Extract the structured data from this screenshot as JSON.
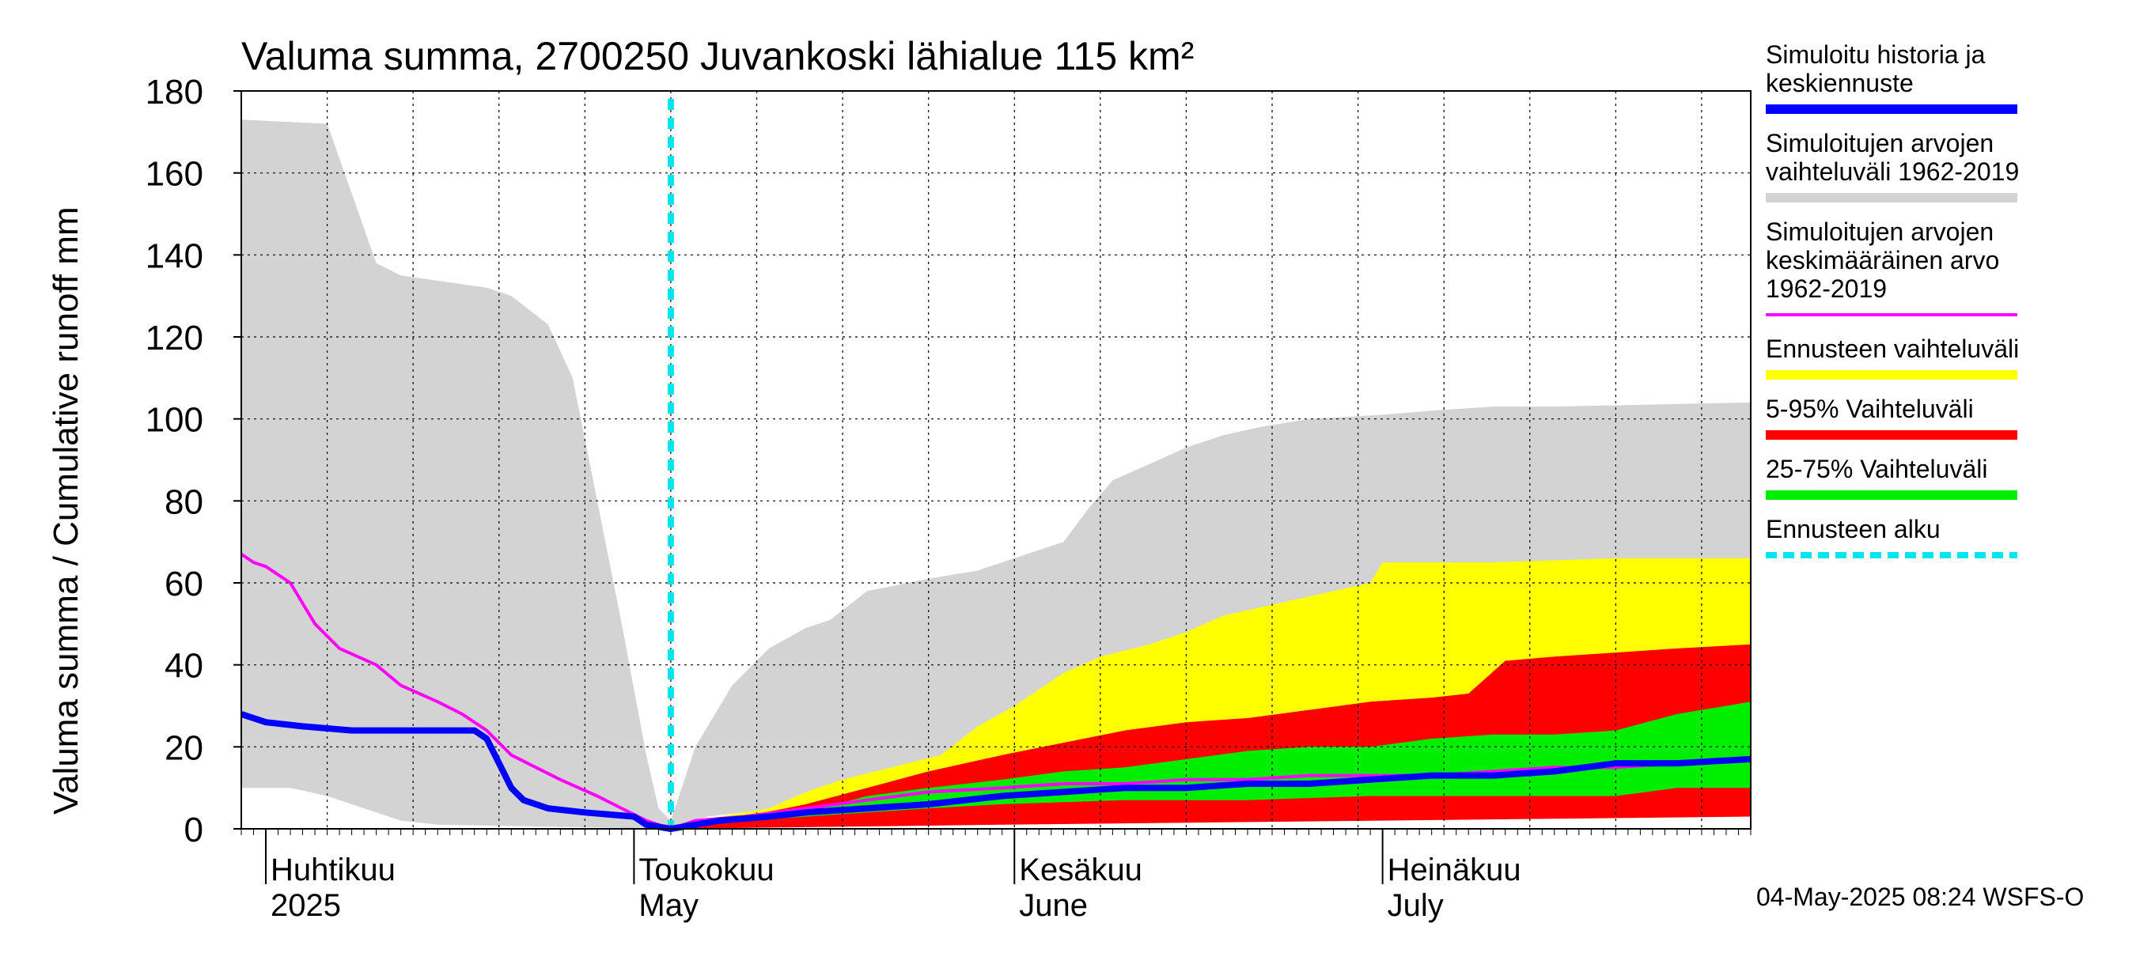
{
  "chart_data": {
    "type": "area",
    "title": "Valuma summa, 2700250 Juvankoski lähialue 115 km²",
    "ylabel": "Valuma summa / Cumulative runoff    mm",
    "ylim": [
      0,
      180
    ],
    "yticks": [
      0,
      20,
      40,
      60,
      80,
      100,
      120,
      140,
      160,
      180
    ],
    "xlim": [
      "2025-03-30",
      "2025-07-31"
    ],
    "grid": true,
    "legend_position": "right",
    "month_labels": [
      {
        "fi": "Huhtikuu",
        "en": "2025",
        "date": "2025-04-01"
      },
      {
        "fi": "Toukokuu",
        "en": "May",
        "date": "2025-05-01"
      },
      {
        "fi": "Kesäkuu",
        "en": "June",
        "date": "2025-06-01"
      },
      {
        "fi": "Heinäkuu",
        "en": "July",
        "date": "2025-07-01"
      }
    ],
    "forecast_start": "2025-05-04",
    "bands": [
      {
        "name": "Simuloitujen arvojen vaihteluväli 1962-2019",
        "color": "#d3d3d3",
        "upper": [
          [
            "2025-03-30",
            173
          ],
          [
            "2025-04-06",
            172
          ],
          [
            "2025-04-10",
            138
          ],
          [
            "2025-04-12",
            135
          ],
          [
            "2025-04-19",
            132
          ],
          [
            "2025-04-21",
            130
          ],
          [
            "2025-04-24",
            123
          ],
          [
            "2025-04-26",
            110
          ],
          [
            "2025-04-28",
            80
          ],
          [
            "2025-04-30",
            50
          ],
          [
            "2025-05-02",
            18
          ],
          [
            "2025-05-03",
            5
          ],
          [
            "2025-05-04",
            2
          ],
          [
            "2025-05-06",
            20
          ],
          [
            "2025-05-09",
            35
          ],
          [
            "2025-05-12",
            44
          ],
          [
            "2025-05-15",
            49
          ],
          [
            "2025-05-17",
            51
          ],
          [
            "2025-05-20",
            58
          ],
          [
            "2025-05-25",
            61
          ],
          [
            "2025-05-29",
            63
          ],
          [
            "2025-06-01",
            66
          ],
          [
            "2025-06-03",
            68
          ],
          [
            "2025-06-05",
            70
          ],
          [
            "2025-06-07",
            78
          ],
          [
            "2025-06-09",
            85
          ],
          [
            "2025-06-12",
            89
          ],
          [
            "2025-06-15",
            93
          ],
          [
            "2025-06-18",
            96
          ],
          [
            "2025-06-21",
            98
          ],
          [
            "2025-06-25",
            100
          ],
          [
            "2025-07-01",
            101
          ],
          [
            "2025-07-05",
            102
          ],
          [
            "2025-07-10",
            103
          ],
          [
            "2025-07-15",
            103
          ],
          [
            "2025-07-31",
            104
          ]
        ],
        "lower": [
          [
            "2025-03-30",
            10
          ],
          [
            "2025-04-03",
            10
          ],
          [
            "2025-04-06",
            8
          ],
          [
            "2025-04-09",
            5
          ],
          [
            "2025-04-12",
            2
          ],
          [
            "2025-04-15",
            1
          ],
          [
            "2025-05-04",
            0
          ],
          [
            "2025-05-07",
            3
          ],
          [
            "2025-05-10",
            4
          ],
          [
            "2025-05-31",
            4
          ],
          [
            "2025-07-31",
            4
          ]
        ]
      },
      {
        "name": "Ennusteen vaihteluväli",
        "color": "#ffff00",
        "upper": [
          [
            "2025-05-04",
            0
          ],
          [
            "2025-05-08",
            3
          ],
          [
            "2025-05-12",
            5
          ],
          [
            "2025-05-15",
            9
          ],
          [
            "2025-05-18",
            12
          ],
          [
            "2025-05-22",
            15
          ],
          [
            "2025-05-26",
            18
          ],
          [
            "2025-05-29",
            25
          ],
          [
            "2025-06-01",
            30
          ],
          [
            "2025-06-03",
            34
          ],
          [
            "2025-06-05",
            38
          ],
          [
            "2025-06-08",
            42
          ],
          [
            "2025-06-12",
            45
          ],
          [
            "2025-06-15",
            48
          ],
          [
            "2025-06-18",
            52
          ],
          [
            "2025-06-21",
            54
          ],
          [
            "2025-06-24",
            56
          ],
          [
            "2025-06-27",
            58
          ],
          [
            "2025-06-30",
            60
          ],
          [
            "2025-07-01",
            65
          ],
          [
            "2025-07-10",
            65
          ],
          [
            "2025-07-20",
            66
          ],
          [
            "2025-07-31",
            66
          ]
        ],
        "lower": [
          [
            "2025-05-04",
            0
          ],
          [
            "2025-05-31",
            2
          ],
          [
            "2025-07-31",
            3
          ]
        ]
      },
      {
        "name": "5-95% Vaihteluväli",
        "color": "#ff0000",
        "upper": [
          [
            "2025-05-04",
            0
          ],
          [
            "2025-05-10",
            3
          ],
          [
            "2025-05-15",
            6
          ],
          [
            "2025-05-20",
            10
          ],
          [
            "2025-05-25",
            14
          ],
          [
            "2025-05-31",
            18
          ],
          [
            "2025-06-05",
            21
          ],
          [
            "2025-06-10",
            24
          ],
          [
            "2025-06-15",
            26
          ],
          [
            "2025-06-20",
            27
          ],
          [
            "2025-06-25",
            29
          ],
          [
            "2025-06-30",
            31
          ],
          [
            "2025-07-05",
            32
          ],
          [
            "2025-07-08",
            33
          ],
          [
            "2025-07-11",
            41
          ],
          [
            "2025-07-15",
            42
          ],
          [
            "2025-07-20",
            43
          ],
          [
            "2025-07-25",
            44
          ],
          [
            "2025-07-31",
            45
          ]
        ],
        "lower": [
          [
            "2025-05-04",
            0
          ],
          [
            "2025-05-31",
            1
          ],
          [
            "2025-07-31",
            3
          ]
        ]
      },
      {
        "name": "25-75% Vaihteluväli",
        "color": "#00ee00",
        "upper": [
          [
            "2025-05-04",
            0
          ],
          [
            "2025-05-10",
            2
          ],
          [
            "2025-05-15",
            4
          ],
          [
            "2025-05-20",
            8
          ],
          [
            "2025-05-25",
            10
          ],
          [
            "2025-05-31",
            12
          ],
          [
            "2025-06-05",
            14
          ],
          [
            "2025-06-10",
            15
          ],
          [
            "2025-06-15",
            17
          ],
          [
            "2025-06-20",
            19
          ],
          [
            "2025-06-25",
            20
          ],
          [
            "2025-06-30",
            20
          ],
          [
            "2025-07-05",
            22
          ],
          [
            "2025-07-10",
            23
          ],
          [
            "2025-07-15",
            23
          ],
          [
            "2025-07-20",
            24
          ],
          [
            "2025-07-25",
            28
          ],
          [
            "2025-07-31",
            31
          ]
        ],
        "lower": [
          [
            "2025-05-04",
            0
          ],
          [
            "2025-05-10",
            2
          ],
          [
            "2025-05-15",
            3
          ],
          [
            "2025-05-20",
            4
          ],
          [
            "2025-05-25",
            5
          ],
          [
            "2025-05-31",
            6
          ],
          [
            "2025-06-10",
            7
          ],
          [
            "2025-06-20",
            7
          ],
          [
            "2025-06-30",
            8
          ],
          [
            "2025-07-10",
            8
          ],
          [
            "2025-07-20",
            8
          ],
          [
            "2025-07-25",
            10
          ],
          [
            "2025-07-31",
            10
          ]
        ]
      }
    ],
    "series": [
      {
        "name": "Simuloitujen arvojen keskimääräinen arvo 1962-2019",
        "color": "#ff00ff",
        "width": 4,
        "points": [
          [
            "2025-03-30",
            67
          ],
          [
            "2025-03-31",
            65
          ],
          [
            "2025-04-01",
            64
          ],
          [
            "2025-04-03",
            60
          ],
          [
            "2025-04-05",
            50
          ],
          [
            "2025-04-07",
            44
          ],
          [
            "2025-04-10",
            40
          ],
          [
            "2025-04-12",
            35
          ],
          [
            "2025-04-15",
            31
          ],
          [
            "2025-04-17",
            28
          ],
          [
            "2025-04-19",
            24
          ],
          [
            "2025-04-21",
            18
          ],
          [
            "2025-04-23",
            15
          ],
          [
            "2025-04-25",
            12
          ],
          [
            "2025-04-28",
            8
          ],
          [
            "2025-04-30",
            5
          ],
          [
            "2025-05-02",
            2
          ],
          [
            "2025-05-04",
            0
          ],
          [
            "2025-05-06",
            2
          ],
          [
            "2025-05-10",
            3
          ],
          [
            "2025-05-15",
            5
          ],
          [
            "2025-05-20",
            7
          ],
          [
            "2025-05-25",
            9
          ],
          [
            "2025-05-31",
            10
          ],
          [
            "2025-06-05",
            11
          ],
          [
            "2025-06-10",
            11
          ],
          [
            "2025-06-15",
            12
          ],
          [
            "2025-06-20",
            12
          ],
          [
            "2025-06-25",
            13
          ],
          [
            "2025-06-30",
            13
          ],
          [
            "2025-07-05",
            13
          ],
          [
            "2025-07-10",
            14
          ],
          [
            "2025-07-15",
            15
          ],
          [
            "2025-07-20",
            15
          ],
          [
            "2025-07-25",
            16
          ],
          [
            "2025-07-31",
            17
          ]
        ]
      },
      {
        "name": "Simuloitu historia ja keskiennuste",
        "color": "#0000ff",
        "width": 8,
        "points": [
          [
            "2025-03-30",
            28
          ],
          [
            "2025-04-01",
            26
          ],
          [
            "2025-04-04",
            25
          ],
          [
            "2025-04-08",
            24
          ],
          [
            "2025-04-15",
            24
          ],
          [
            "2025-04-18",
            24
          ],
          [
            "2025-04-19",
            22
          ],
          [
            "2025-04-20",
            16
          ],
          [
            "2025-04-21",
            10
          ],
          [
            "2025-04-22",
            7
          ],
          [
            "2025-04-24",
            5
          ],
          [
            "2025-04-27",
            4
          ],
          [
            "2025-05-01",
            3
          ],
          [
            "2025-05-02",
            1
          ],
          [
            "2025-05-04",
            0
          ],
          [
            "2025-05-06",
            1
          ],
          [
            "2025-05-08",
            2
          ],
          [
            "2025-05-12",
            3
          ],
          [
            "2025-05-15",
            4
          ],
          [
            "2025-05-20",
            5
          ],
          [
            "2025-05-25",
            6
          ],
          [
            "2025-05-31",
            8
          ],
          [
            "2025-06-05",
            9
          ],
          [
            "2025-06-10",
            10
          ],
          [
            "2025-06-15",
            10
          ],
          [
            "2025-06-20",
            11
          ],
          [
            "2025-06-25",
            11
          ],
          [
            "2025-06-30",
            12
          ],
          [
            "2025-07-05",
            13
          ],
          [
            "2025-07-10",
            13
          ],
          [
            "2025-07-15",
            14
          ],
          [
            "2025-07-20",
            16
          ],
          [
            "2025-07-25",
            16
          ],
          [
            "2025-07-31",
            17
          ]
        ]
      }
    ],
    "legend": [
      {
        "label": "Simuloitu historia ja\nkeskiennuste",
        "color": "#0000ff",
        "style": "solid"
      },
      {
        "label": "Simuloitujen arvojen\nvaihteluväli 1962-2019",
        "color": "#d3d3d3",
        "style": "solid"
      },
      {
        "label": "Simuloitujen arvojen\nkeskimääräinen arvo\n   1962-2019",
        "color": "#ff00ff",
        "style": "thin"
      },
      {
        "label": "Ennusteen vaihteluväli",
        "color": "#ffff00",
        "style": "solid"
      },
      {
        "label": "5-95% Vaihteluväli",
        "color": "#ff0000",
        "style": "solid"
      },
      {
        "label": "25-75% Vaihteluväli",
        "color": "#00ee00",
        "style": "solid"
      },
      {
        "label": "Ennusteen alku",
        "color": "#00e5ee",
        "style": "dashed"
      }
    ]
  },
  "footer": {
    "timestamp": "04-May-2025 08:24 WSFS-O"
  }
}
